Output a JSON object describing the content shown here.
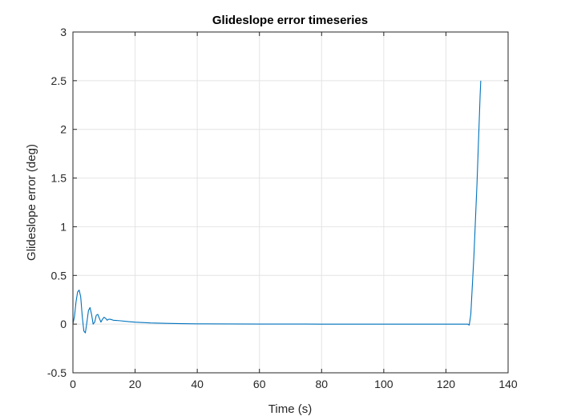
{
  "chart_data": {
    "type": "line",
    "title": "Glideslope error timeseries",
    "xlabel": "Time (s)",
    "ylabel": "Glideslope error (deg)",
    "xlim": [
      0,
      140
    ],
    "ylim": [
      -0.5,
      3
    ],
    "xticks": [
      0,
      20,
      40,
      60,
      80,
      100,
      120,
      140
    ],
    "yticks": [
      -0.5,
      0,
      0.5,
      1,
      1.5,
      2,
      2.5,
      3
    ],
    "xtick_labels": [
      "0",
      "20",
      "40",
      "60",
      "80",
      "100",
      "120",
      "140"
    ],
    "ytick_labels": [
      "-0.5",
      "0",
      "0.5",
      "1",
      "1.5",
      "2",
      "2.5",
      "3"
    ],
    "grid": true,
    "color": "#0072BD",
    "series": [
      {
        "x": [
          0,
          0.5,
          1,
          1.5,
          2,
          2.5,
          3,
          3.5,
          4,
          4.5,
          5,
          5.5,
          6,
          6.5,
          7,
          7.5,
          8,
          8.5,
          9,
          9.5,
          10,
          10.5,
          11,
          11.5,
          12,
          13,
          15,
          18,
          20,
          25,
          30,
          35,
          40,
          50,
          60,
          80,
          100,
          110,
          120,
          125,
          127,
          127.5,
          128,
          129,
          130,
          130.5,
          131,
          131.2
        ],
        "y": [
          0.0,
          0.08,
          0.23,
          0.33,
          0.35,
          0.28,
          0.08,
          -0.07,
          -0.09,
          0.02,
          0.14,
          0.17,
          0.1,
          0.0,
          0.02,
          0.09,
          0.1,
          0.06,
          0.02,
          0.05,
          0.07,
          0.06,
          0.04,
          0.05,
          0.05,
          0.04,
          0.035,
          0.025,
          0.02,
          0.012,
          0.008,
          0.005,
          0.003,
          0.002,
          0.001,
          0.0,
          0.0,
          0.0,
          0.0,
          0.0,
          0.0,
          -0.01,
          0.1,
          0.7,
          1.45,
          1.9,
          2.35,
          2.5
        ]
      }
    ]
  }
}
